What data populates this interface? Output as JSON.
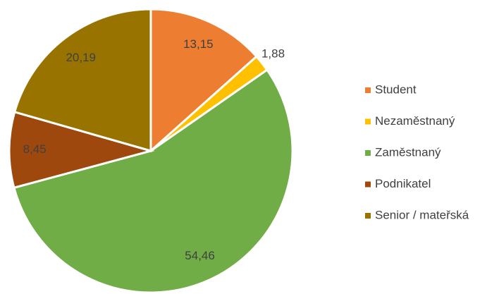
{
  "chart_data": {
    "type": "pie",
    "categories": [
      "Student",
      "Nezaměstnaný",
      "Zaměstnaný",
      "Podnikatel",
      "Senior / mateřská"
    ],
    "values": [
      13.15,
      1.88,
      54.46,
      8.45,
      20.19
    ],
    "value_labels": [
      "13,15",
      "1,88",
      "54,46",
      "8,45",
      "20,19"
    ],
    "colors": [
      "#ed7d31",
      "#ffc000",
      "#70ad47",
      "#9e480e",
      "#997300"
    ],
    "legend": "right"
  }
}
